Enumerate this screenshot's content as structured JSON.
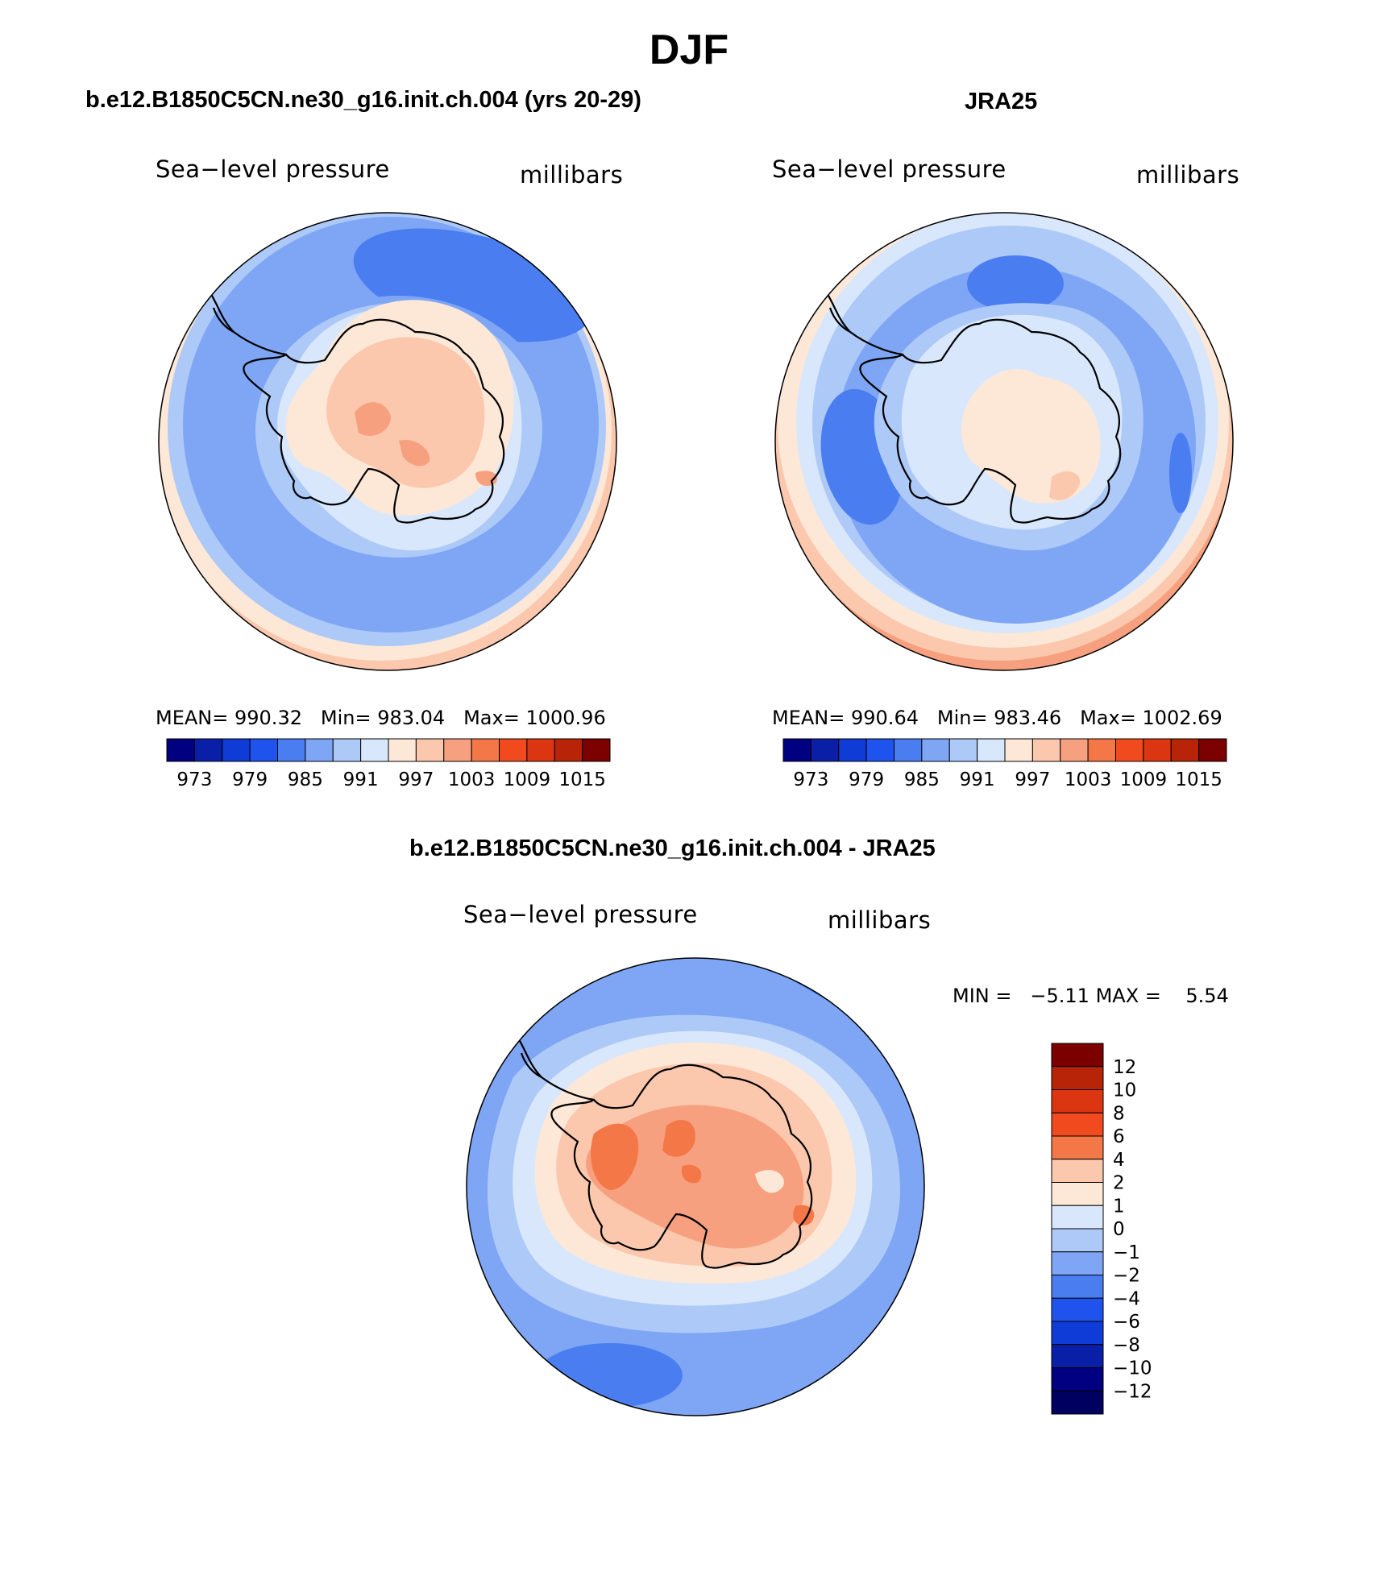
{
  "title": "DJF",
  "panels": [
    {
      "id": "model",
      "heading": "b.e12.B1850C5CN.ne30_g16.init.ch.004 (yrs 20-29)",
      "field_label": "Sea−level pressure",
      "units_label": "millibars",
      "stats": {
        "mean_label": "MEAN=",
        "mean": "990.32",
        "min_label": "Min=",
        "min": "983.04",
        "max_label": "Max=",
        "max": "1000.96"
      }
    },
    {
      "id": "obs",
      "heading": "JRA25",
      "field_label": "Sea−level pressure",
      "units_label": "millibars",
      "stats": {
        "mean_label": "MEAN=",
        "mean": "990.64",
        "min_label": "Min=",
        "min": "983.46",
        "max_label": "Max=",
        "max": "1002.69"
      }
    },
    {
      "id": "diff",
      "heading": "b.e12.B1850C5CN.ne30_g16.init.ch.004 - JRA25",
      "field_label": "Sea−level pressure",
      "units_label": "millibars",
      "stats": {
        "min_label": "MIN =",
        "min": "−5.11",
        "max_label": "MAX =",
        "max": "5.54"
      }
    }
  ],
  "colorbar_abs": {
    "colors": [
      "#000080",
      "#0a1fa8",
      "#0f3bd6",
      "#1f53ee",
      "#4a7ef0",
      "#7ea6f5",
      "#adc9f8",
      "#d8e7fb",
      "#fde8d8",
      "#fbc8ad",
      "#f6a07f",
      "#f47747",
      "#f04a1e",
      "#db3511",
      "#b82408",
      "#7d0000"
    ],
    "tick_labels": [
      "973",
      "979",
      "985",
      "991",
      "997",
      "1003",
      "1009",
      "1015"
    ]
  },
  "colorbar_diff": {
    "colors": [
      "#7d0000",
      "#b82408",
      "#db3511",
      "#f04a1e",
      "#f47747",
      "#fbc8ad",
      "#fde8d8",
      "#d8e7fb",
      "#adc9f8",
      "#7ea6f5",
      "#4a7ef0",
      "#1f53ee",
      "#0f3bd6",
      "#0a1fa8",
      "#000080",
      "#000060"
    ],
    "tick_labels": [
      "12",
      "10",
      "8",
      "6",
      "4",
      "2",
      "1",
      "0",
      "−1",
      "−2",
      "−4",
      "−6",
      "−8",
      "−10",
      "−12"
    ]
  },
  "palette": {
    "ocean_deep": "#7ea6f5",
    "ocean_dark": "#4a7ef0",
    "ocean_light": "#adc9f8",
    "ocean_pale": "#d8e7fb",
    "land_pale": "#fde8d8",
    "land_mid": "#fbc8ad",
    "land_warm": "#f6a07f",
    "land_hot": "#f47747",
    "coast": "#000000"
  }
}
